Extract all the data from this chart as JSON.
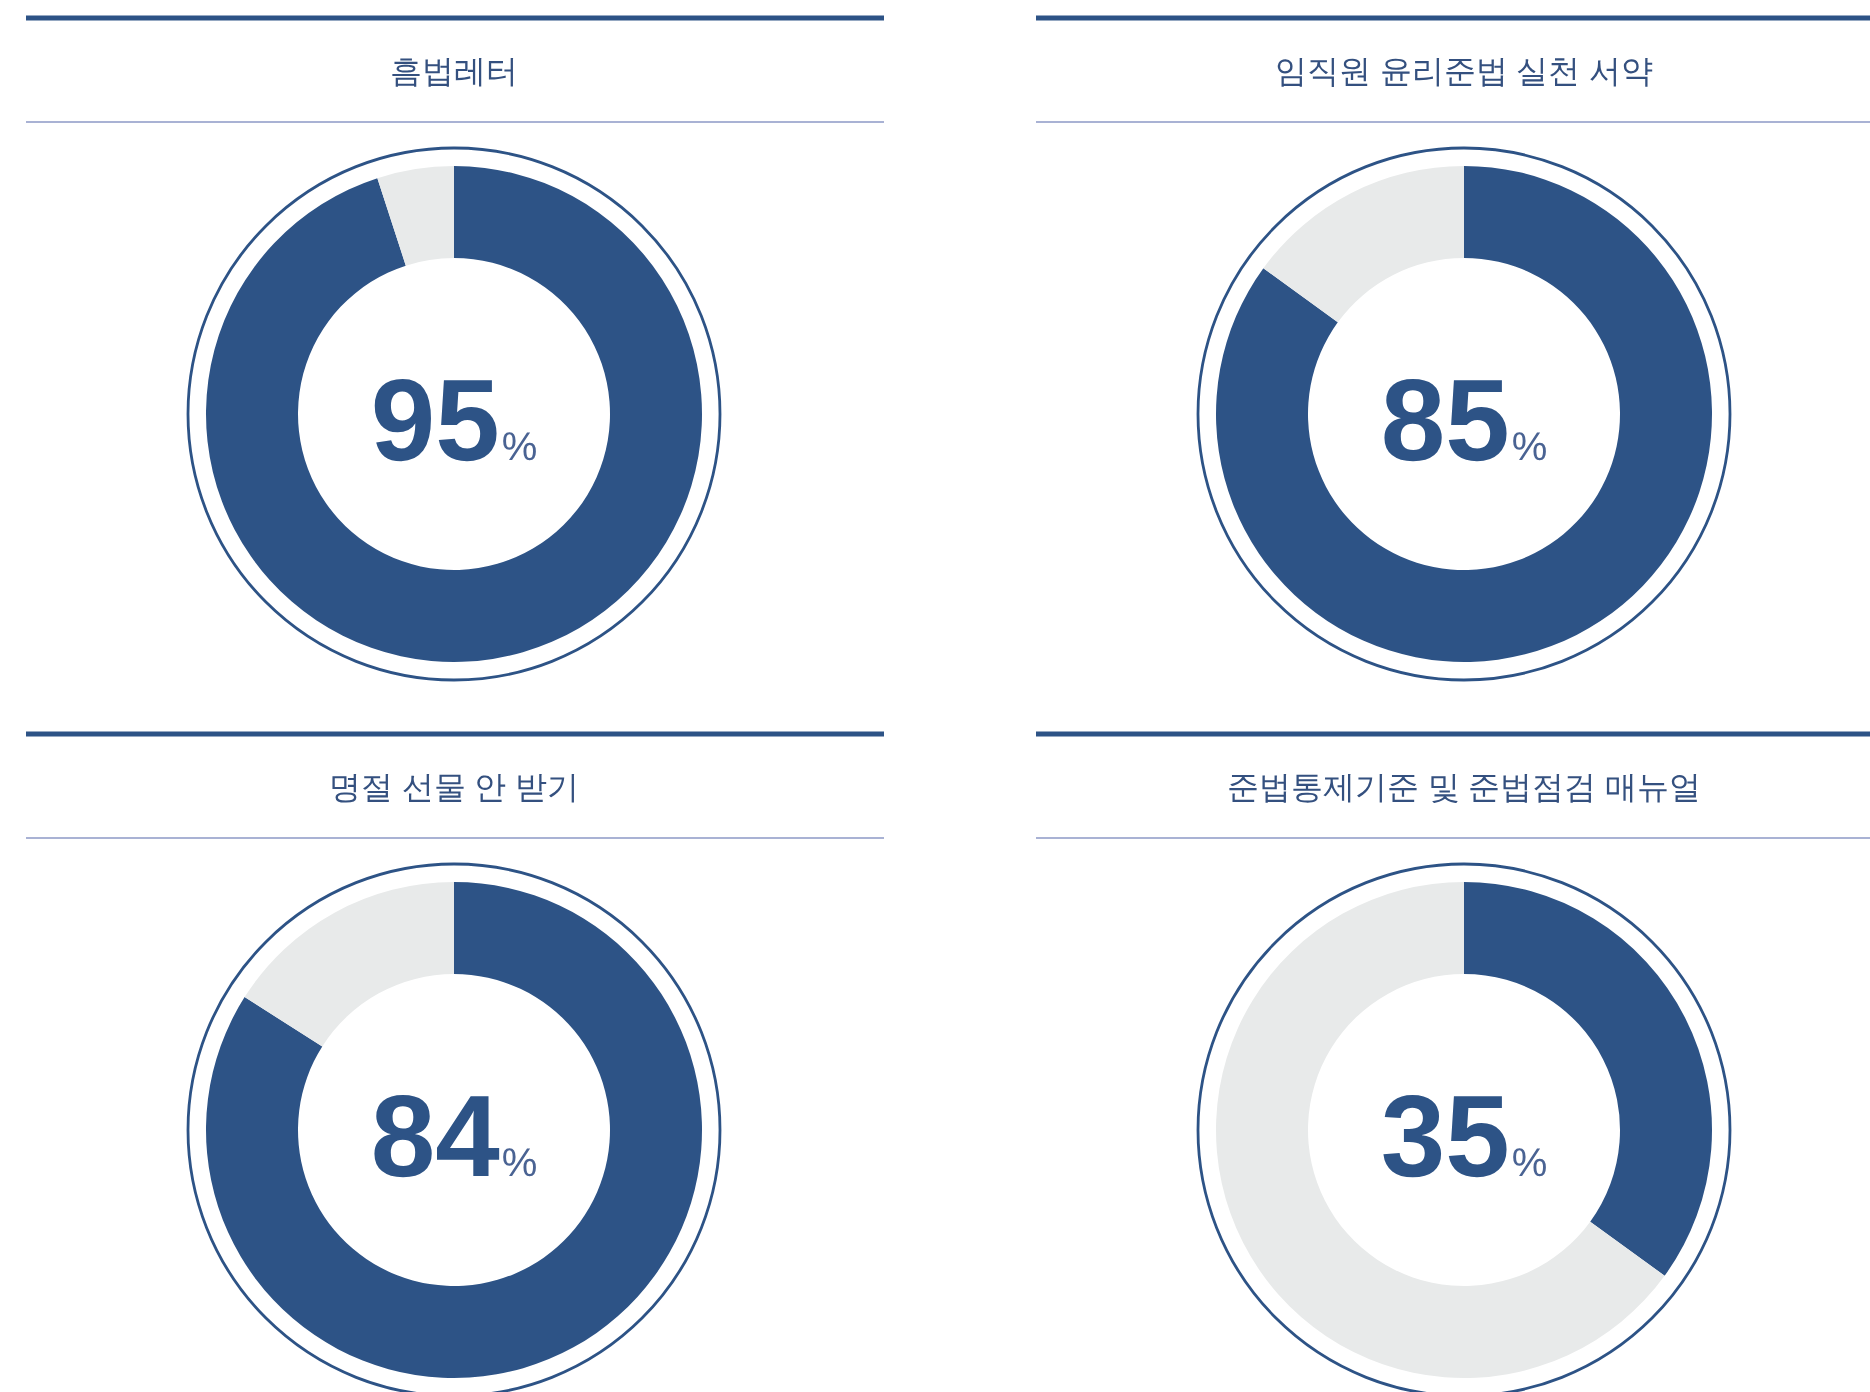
{
  "chart_data": [
    {
      "type": "donut",
      "title": "흠법레터",
      "categories": [
        null,
        null
      ],
      "values": [
        95,
        5
      ],
      "colors": [
        "#2d5386",
        "#e8eaea"
      ],
      "annotations": [
        "95%"
      ]
    },
    {
      "type": "donut",
      "title": "임직원 윤리준법 실천 서약",
      "categories": [
        null,
        null
      ],
      "values": [
        85,
        15
      ],
      "colors": [
        "#2d5386",
        "#e8eaea"
      ],
      "annotations": [
        "85%"
      ]
    },
    {
      "type": "donut",
      "title": "명절 선물 안 받기",
      "categories": [
        null,
        null
      ],
      "values": [
        84,
        16
      ],
      "colors": [
        "#2d5386",
        "#e8eaea"
      ],
      "annotations": [
        "84%"
      ]
    },
    {
      "type": "donut",
      "title": "준법통제기준 및 준법점검 매뉴얼",
      "categories": [
        null,
        null
      ],
      "values": [
        35,
        65
      ],
      "colors": [
        "#2d5386",
        "#e8eaea"
      ],
      "annotations": [
        "35%"
      ]
    }
  ]
}
